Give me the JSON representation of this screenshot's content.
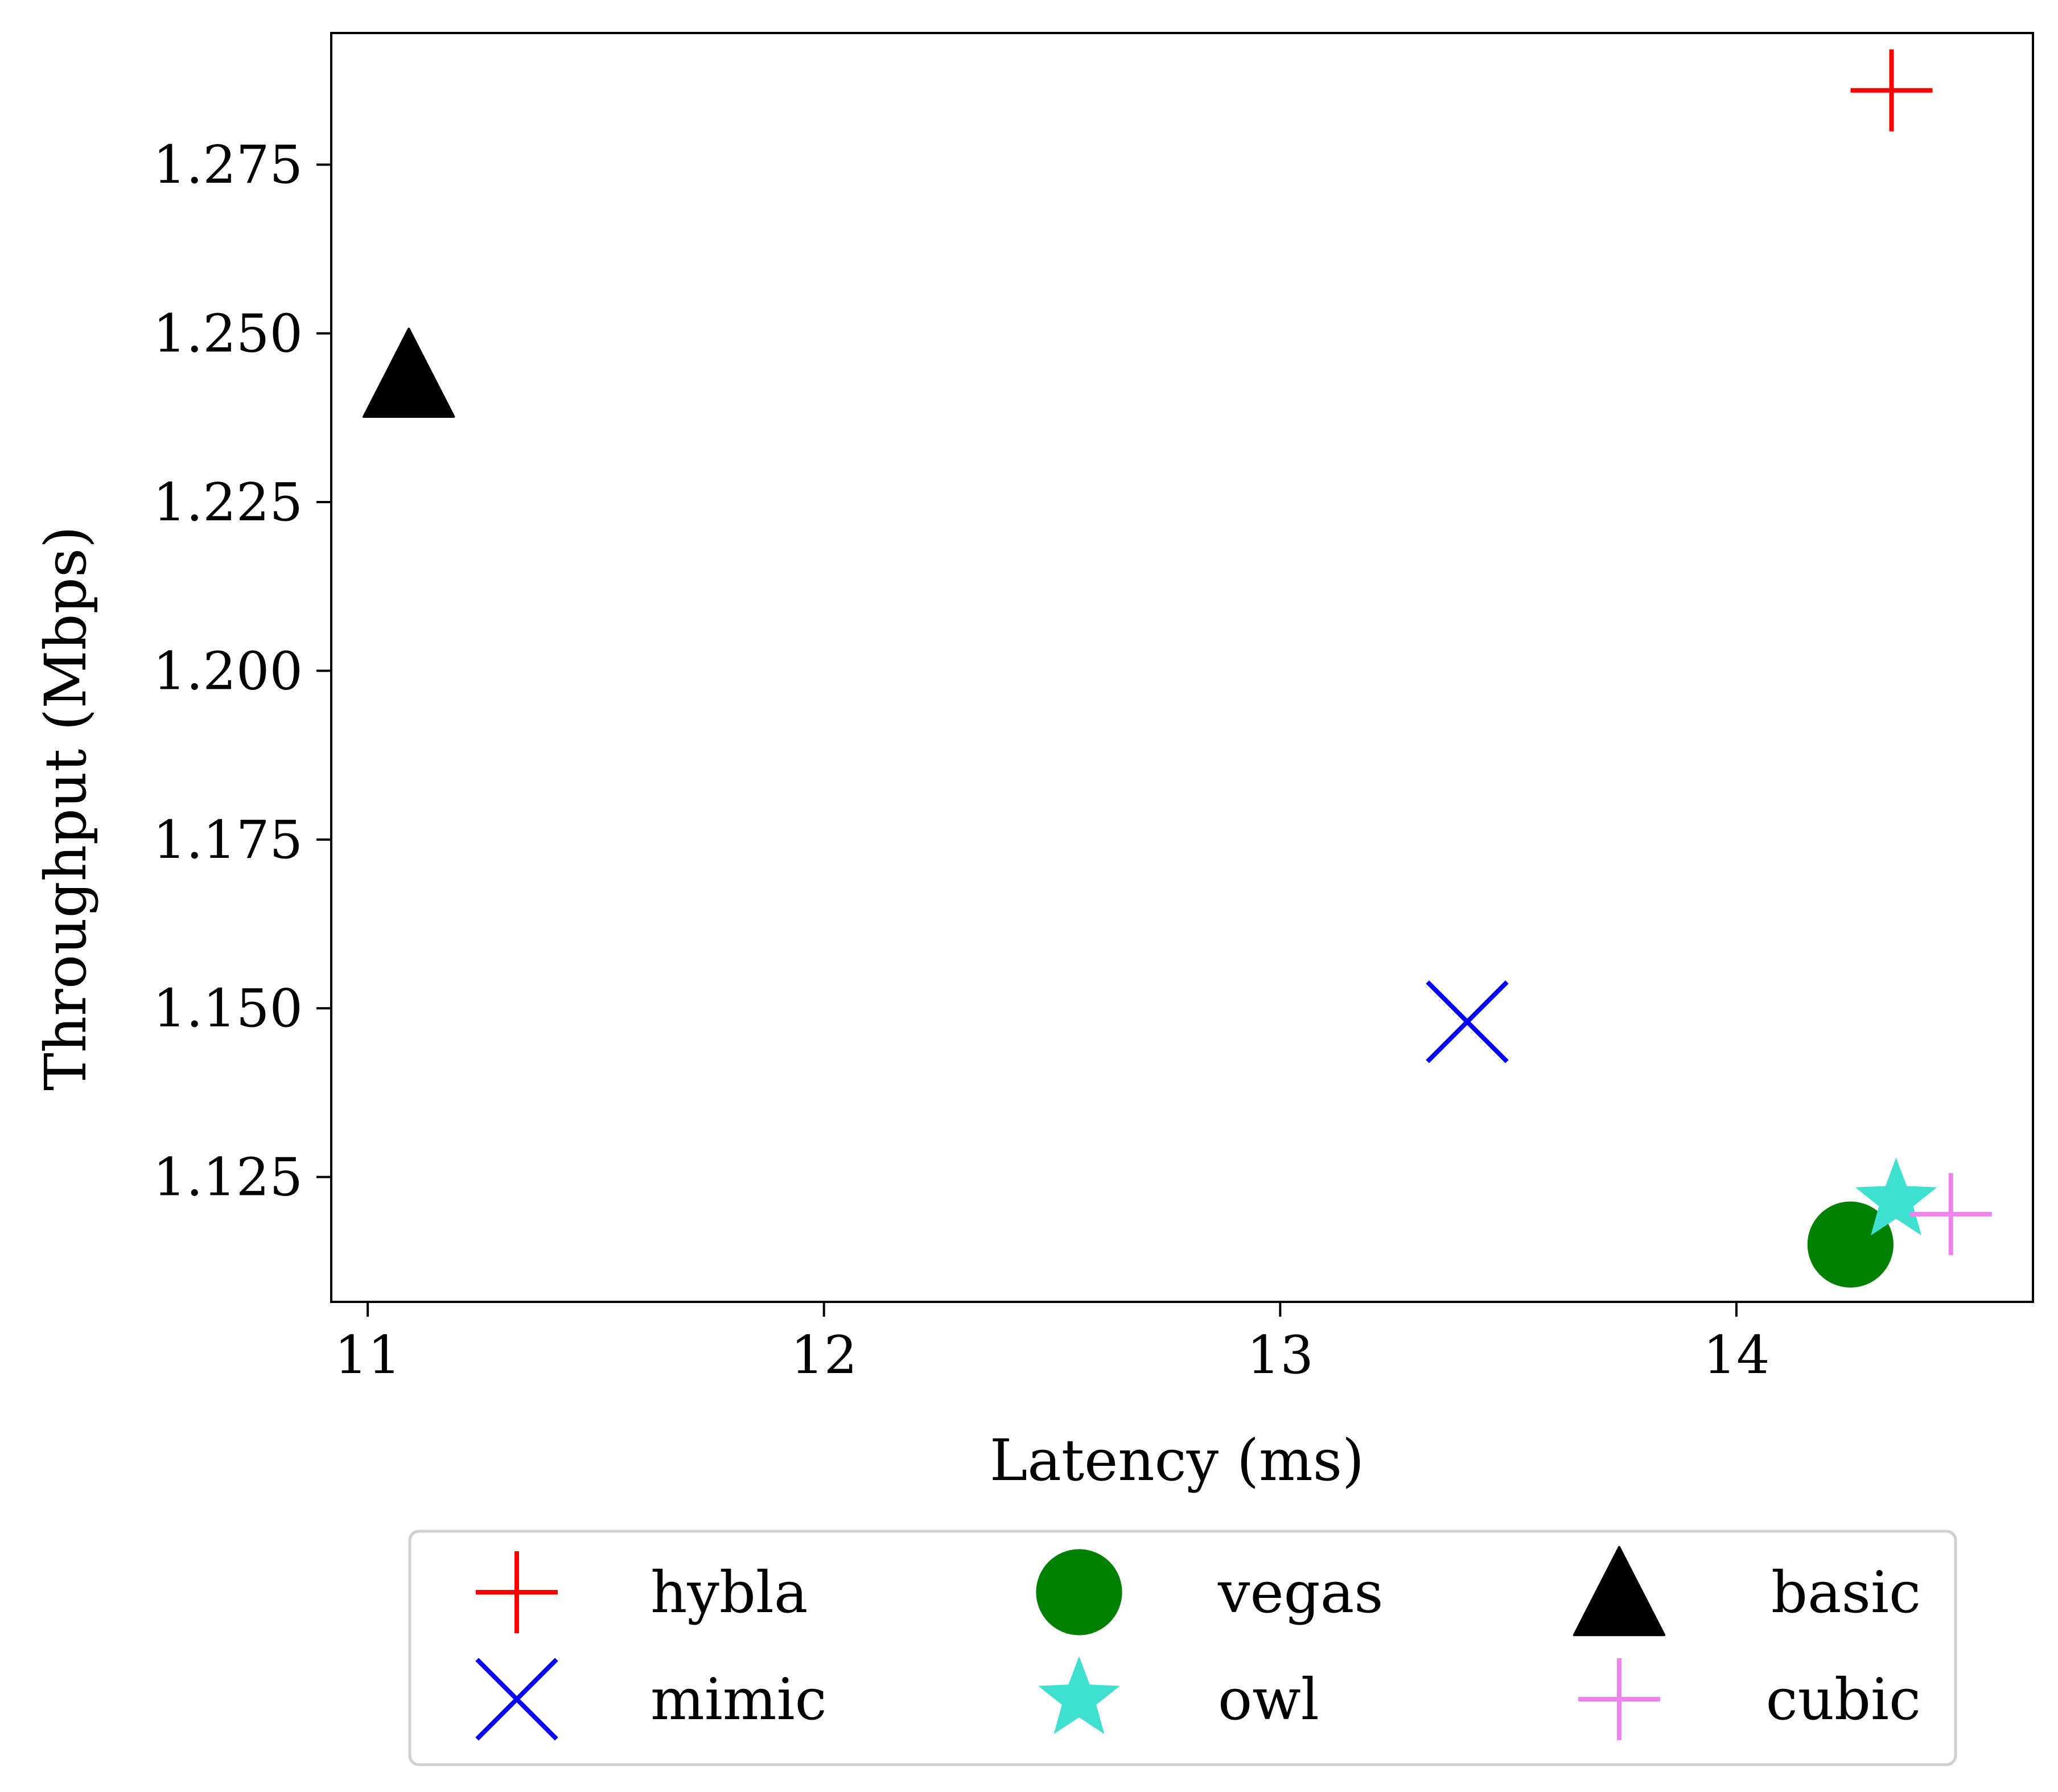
{
  "chart_data": {
    "type": "scatter",
    "title": "",
    "xlabel": "Latency (ms)",
    "ylabel": "Throughput (Mbps)",
    "xlim": [
      10.92,
      14.65
    ],
    "ylim": [
      1.1065,
      1.2945
    ],
    "xticks": [
      11,
      12,
      13,
      14
    ],
    "yticks": [
      1.125,
      1.15,
      1.175,
      1.2,
      1.225,
      1.25,
      1.275
    ],
    "xtick_labels": [
      "11",
      "12",
      "13",
      "14"
    ],
    "ytick_labels": [
      "1.125",
      "1.150",
      "1.175",
      "1.200",
      "1.225",
      "1.250",
      "1.275"
    ],
    "grid": false,
    "legend_position": "bottom-outside",
    "legend_columns": 3,
    "series": [
      {
        "name": "hybla",
        "marker": "plus",
        "color": "#ff0000",
        "x": 14.34,
        "y": 1.286
      },
      {
        "name": "mimic",
        "marker": "x",
        "color": "#0000ff",
        "x": 13.41,
        "y": 1.148
      },
      {
        "name": "vegas",
        "marker": "circle",
        "color": "#008000",
        "x": 14.25,
        "y": 1.115
      },
      {
        "name": "owl",
        "marker": "star",
        "color": "#40e0d0",
        "x": 14.35,
        "y": 1.1215
      },
      {
        "name": "basic",
        "marker": "triangle",
        "color": "#000000",
        "x": 11.09,
        "y": 1.244
      },
      {
        "name": "cubic",
        "marker": "plus",
        "color": "#ee82ee",
        "x": 14.47,
        "y": 1.1195
      }
    ]
  }
}
